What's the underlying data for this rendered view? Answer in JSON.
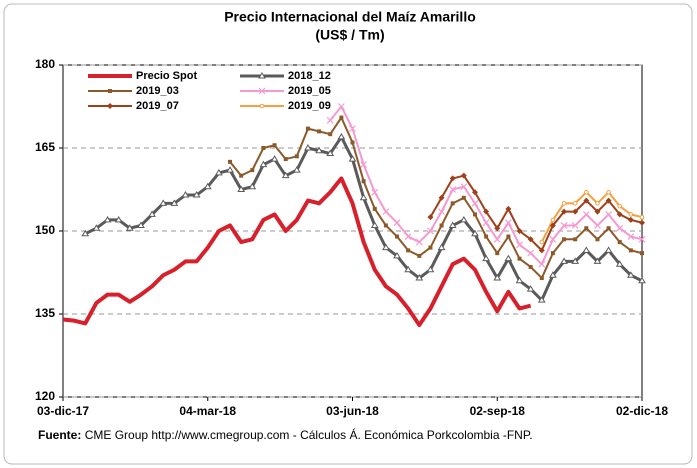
{
  "chart_data": {
    "type": "line",
    "title": "Precio Internacional del Maíz Amarillo",
    "subtitle": "(US$ / Tm)",
    "categories": [
      "03-dic-17",
      null,
      null,
      null,
      null,
      null,
      null,
      null,
      null,
      null,
      null,
      null,
      null,
      "04-mar-18",
      null,
      null,
      null,
      null,
      null,
      null,
      null,
      null,
      null,
      null,
      null,
      null,
      "03-jun-18",
      null,
      null,
      null,
      null,
      null,
      null,
      null,
      null,
      null,
      null,
      null,
      null,
      "02-sep-18",
      null,
      null,
      null,
      null,
      null,
      null,
      null,
      null,
      null,
      null,
      null,
      null,
      "02-dic-18"
    ],
    "ylim": [
      120,
      180
    ],
    "yticks": [
      120,
      135,
      150,
      165,
      180
    ],
    "grid": true,
    "series": [
      {
        "name": "Precio Spot",
        "color": "#d7202b",
        "width": 4,
        "marker": "none",
        "values": [
          134,
          133.8,
          133.3,
          137,
          138.5,
          138.5,
          137.2,
          138.5,
          140,
          142,
          143,
          144.5,
          144.5,
          147,
          150,
          151,
          148,
          148.5,
          152,
          153,
          150,
          152,
          155.5,
          155,
          157,
          159.5,
          155,
          148,
          143,
          140,
          138.5,
          136,
          133,
          136,
          140,
          144,
          145,
          143,
          139,
          135.5,
          139,
          136,
          136.5,
          null,
          null,
          null,
          null,
          null,
          null,
          null,
          null,
          null,
          null
        ]
      },
      {
        "name": "2018_12",
        "color": "#5a5a5a",
        "width": 3,
        "marker": "triangle",
        "values": [
          null,
          null,
          149.5,
          150.5,
          152,
          152,
          150.5,
          151,
          153,
          155,
          155,
          156.5,
          156.5,
          158,
          160.5,
          161,
          157.5,
          158,
          162,
          163,
          160,
          161,
          165,
          164.5,
          164,
          167,
          163,
          156,
          151,
          147,
          145.5,
          143,
          141.5,
          143,
          147,
          151,
          152,
          149.5,
          145,
          141.5,
          145,
          141,
          139.5,
          137.5,
          142,
          144.5,
          144.5,
          146.5,
          144.5,
          146.5,
          144,
          142,
          141
        ]
      },
      {
        "name": "2019_03",
        "color": "#8c5a2a",
        "width": 2,
        "marker": "square",
        "values": [
          null,
          null,
          null,
          null,
          null,
          null,
          null,
          null,
          null,
          null,
          null,
          null,
          null,
          null,
          null,
          162.5,
          160,
          161,
          165,
          165.5,
          163,
          163.5,
          168.5,
          168,
          167.5,
          170.5,
          166,
          159,
          154,
          151,
          149,
          146.5,
          145.5,
          147,
          151,
          155,
          156,
          153,
          149,
          146,
          149,
          145,
          143.5,
          141.5,
          146,
          148.5,
          148.5,
          150.5,
          148.5,
          150.5,
          148,
          146.5,
          146
        ]
      },
      {
        "name": "2019_05",
        "color": "#f59ad0",
        "width": 2,
        "marker": "cross",
        "values": [
          null,
          null,
          null,
          null,
          null,
          null,
          null,
          null,
          null,
          null,
          null,
          null,
          null,
          null,
          null,
          null,
          null,
          null,
          null,
          null,
          null,
          null,
          null,
          null,
          170,
          172.5,
          168.5,
          162,
          157,
          153.5,
          151.5,
          149,
          148,
          150,
          153.5,
          157.5,
          158,
          155,
          151.5,
          148.5,
          151.5,
          147.5,
          146,
          144,
          148.5,
          151,
          151,
          153,
          151,
          153,
          150.5,
          149,
          148.5
        ]
      },
      {
        "name": "2019_07",
        "color": "#a0401a",
        "width": 2,
        "marker": "diamond",
        "values": [
          null,
          null,
          null,
          null,
          null,
          null,
          null,
          null,
          null,
          null,
          null,
          null,
          null,
          null,
          null,
          null,
          null,
          null,
          null,
          null,
          null,
          null,
          null,
          null,
          null,
          null,
          null,
          null,
          null,
          null,
          null,
          null,
          null,
          152.5,
          156,
          159.5,
          160,
          157,
          153.5,
          150.5,
          154,
          150,
          148.5,
          146.5,
          151,
          153.5,
          153.5,
          155.5,
          153.5,
          155.5,
          153,
          152,
          151.5
        ]
      },
      {
        "name": "2019_09",
        "color": "#f5a040",
        "width": 2,
        "marker": "circle",
        "values": [
          null,
          null,
          null,
          null,
          null,
          null,
          null,
          null,
          null,
          null,
          null,
          null,
          null,
          null,
          null,
          null,
          null,
          null,
          null,
          null,
          null,
          null,
          null,
          null,
          null,
          null,
          null,
          null,
          null,
          null,
          null,
          null,
          null,
          null,
          null,
          null,
          null,
          null,
          null,
          null,
          null,
          null,
          null,
          148,
          152,
          155,
          155,
          157,
          155,
          157,
          154.5,
          153,
          152.5
        ]
      }
    ],
    "source_label": "Fuente:",
    "source": "CME Group http://www.cmegroup.com - Cálculos Á. Económica Porkcolombia -FNP."
  }
}
